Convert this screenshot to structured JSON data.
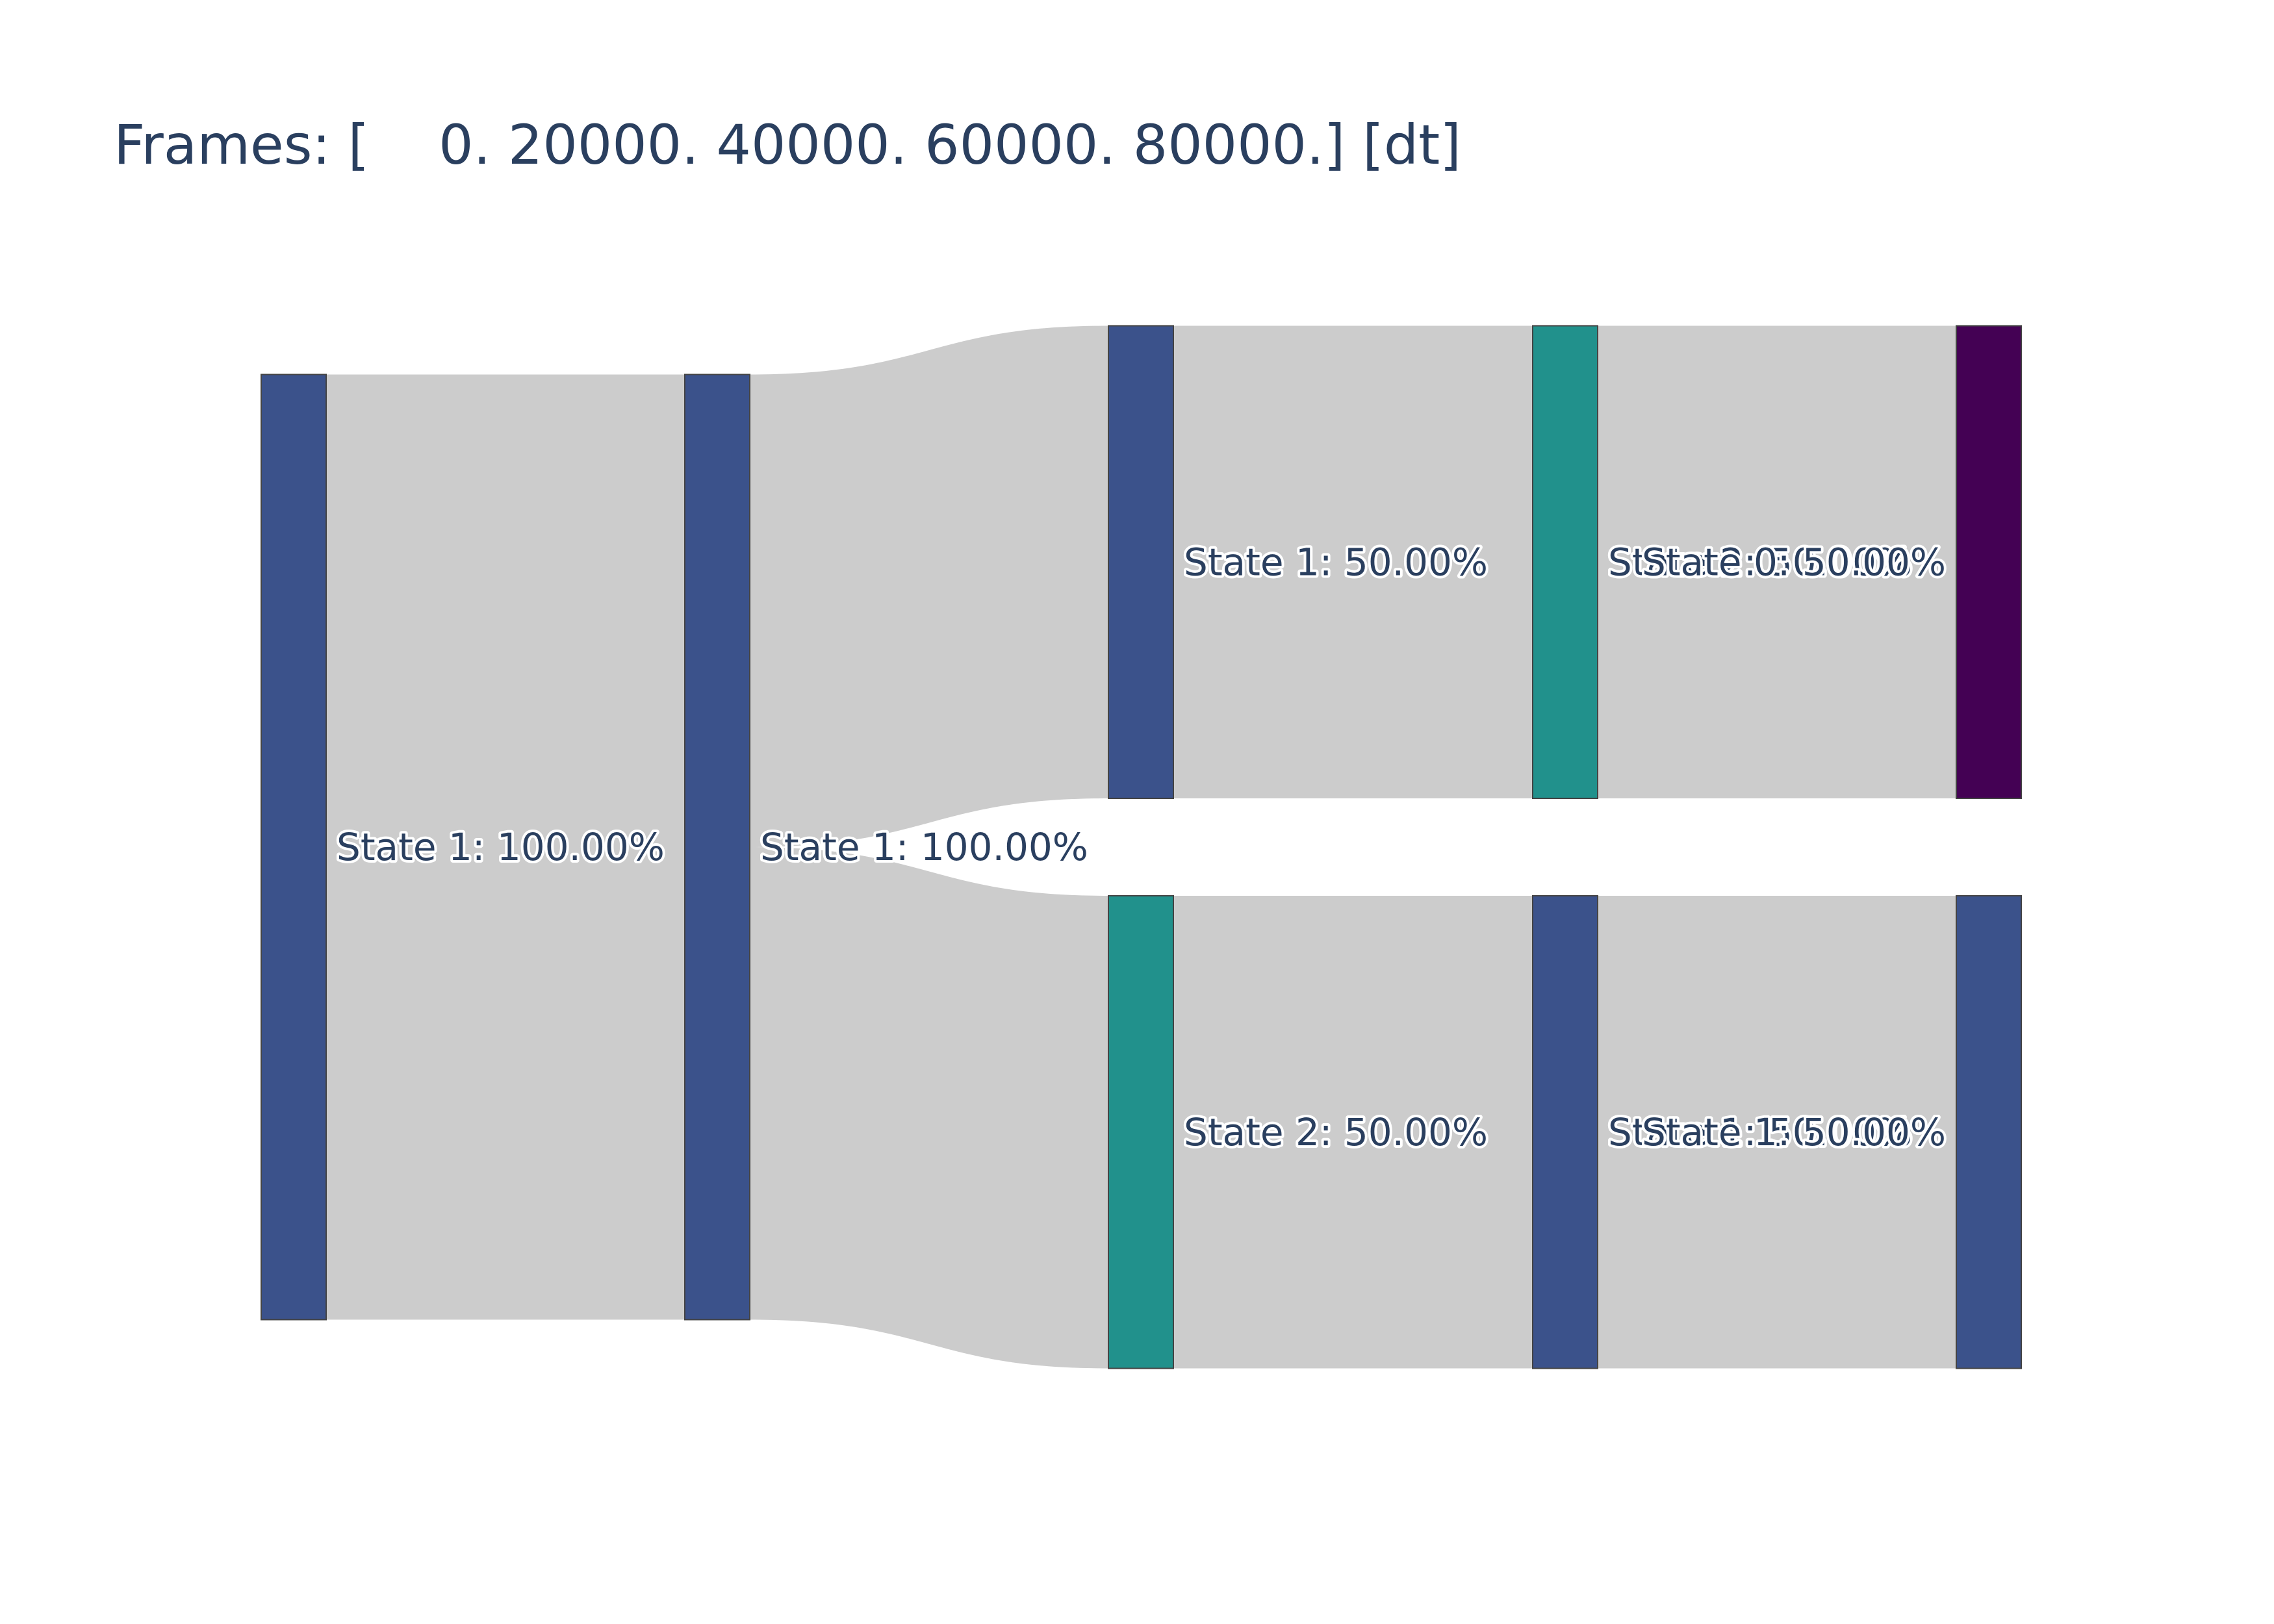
{
  "chart_data": {
    "type": "sankey",
    "title": "Frames: [    0. 20000. 40000. 60000. 80000.] [dt]",
    "link_color": "#cccccc",
    "columns": [
      {
        "nodes": [
          {
            "state": "State 1",
            "label": "State 1: 100.00%",
            "fraction": 1.0,
            "color": "#3b528b"
          }
        ]
      },
      {
        "nodes": [
          {
            "state": "State 1",
            "label": "State 1: 100.00%",
            "fraction": 1.0,
            "color": "#3b528b"
          }
        ]
      },
      {
        "nodes": [
          {
            "state": "State 1",
            "label": "State 1: 50.00%",
            "fraction": 0.5,
            "color": "#3b528b"
          },
          {
            "state": "State 2",
            "label": "State 2: 50.00%",
            "fraction": 0.5,
            "color": "#21918c"
          }
        ]
      },
      {
        "nodes": [
          {
            "state": "State 2",
            "label": "State 2: 50.00%",
            "fraction": 0.5,
            "color": "#21918c"
          },
          {
            "state": "State 1",
            "label": "State 1: 50.00%",
            "fraction": 0.5,
            "color": "#3b528b"
          }
        ]
      },
      {
        "nodes": [
          {
            "state": "State 0",
            "label": "State 0: 50.00%",
            "fraction": 0.5,
            "color": "#440154"
          },
          {
            "state": "State 1",
            "label": "State 1: 50.00%",
            "fraction": 0.5,
            "color": "#3b528b"
          }
        ]
      }
    ],
    "links": [
      {
        "from": [
          0,
          0
        ],
        "to": [
          1,
          0
        ],
        "value": 1.0
      },
      {
        "from": [
          1,
          0
        ],
        "to": [
          2,
          0
        ],
        "value": 0.5
      },
      {
        "from": [
          1,
          0
        ],
        "to": [
          2,
          1
        ],
        "value": 0.5
      },
      {
        "from": [
          2,
          0
        ],
        "to": [
          3,
          0
        ],
        "value": 0.5
      },
      {
        "from": [
          2,
          1
        ],
        "to": [
          3,
          1
        ],
        "value": 0.5
      },
      {
        "from": [
          3,
          0
        ],
        "to": [
          4,
          0
        ],
        "value": 0.5
      },
      {
        "from": [
          3,
          1
        ],
        "to": [
          4,
          1
        ],
        "value": 0.5
      }
    ]
  }
}
